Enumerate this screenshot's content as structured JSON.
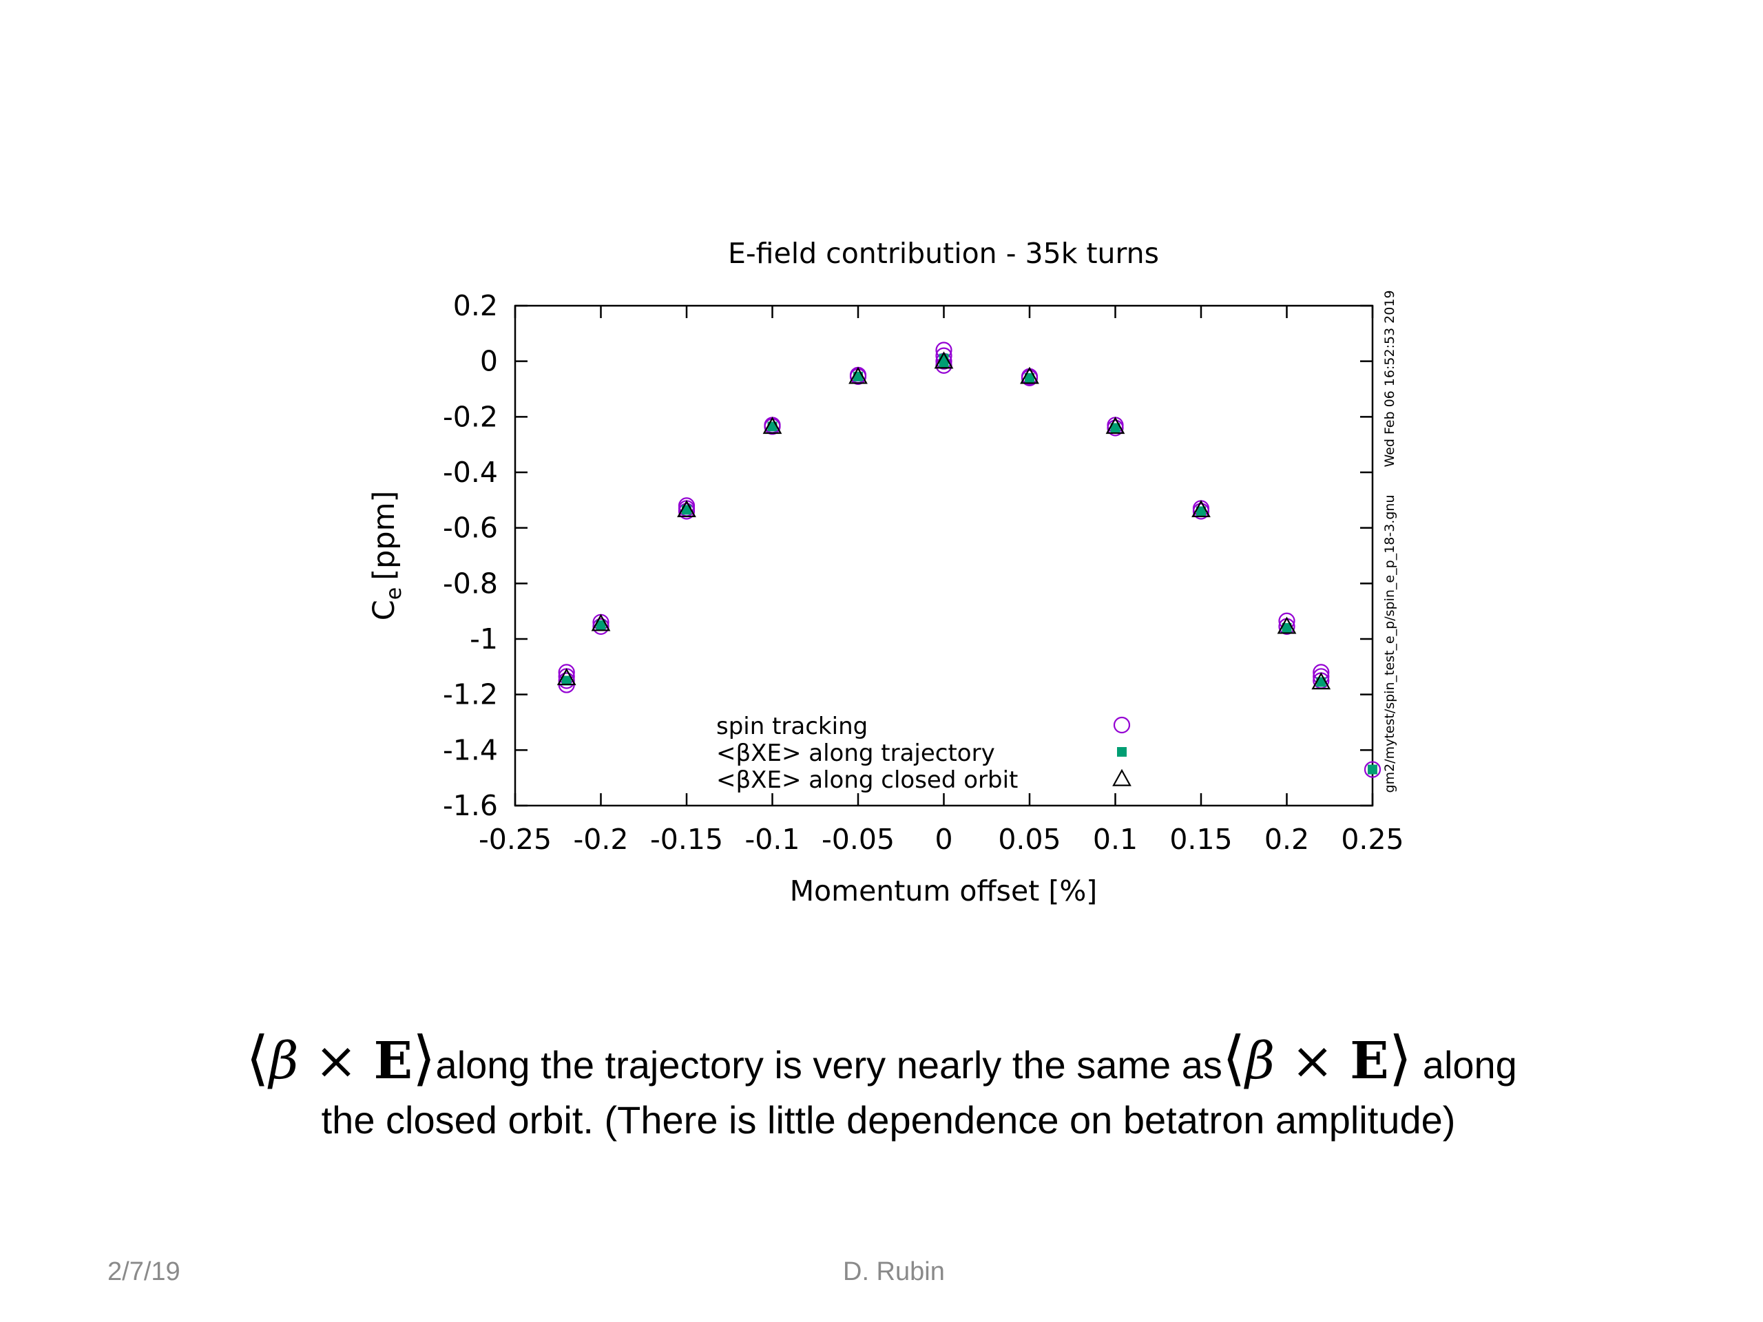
{
  "slide": {
    "caption_line1_a": "along the trajectory is very nearly the same as",
    "caption_line1_b": "along",
    "caption_line2": "the closed orbit. (There is little dependence on betatron amplitude)",
    "math_expression": "β × E",
    "date": "2/7/19",
    "author": "D. Rubin"
  },
  "plot_stamps": {
    "timestamp": "Wed Feb 06 16:52:53 2019",
    "script_path": "gm2/mytest/spin_test_e_p/spin_e_p_18-3.gnu"
  },
  "colors": {
    "spin_tracking": "#9400d3",
    "trajectory": "#009e73",
    "closed_orbit": "#000000",
    "axes": "#000000"
  },
  "chart_data": {
    "type": "scatter",
    "title": "E-field contribution - 35k turns",
    "xlabel": "Momentum offset [%]",
    "ylabel_main": "C",
    "ylabel_sub": "e",
    "ylabel_unit": "[ppm]",
    "xlim": [
      -0.25,
      0.25
    ],
    "ylim": [
      -1.6,
      0.2
    ],
    "xticks": [
      -0.25,
      -0.2,
      -0.15,
      -0.1,
      -0.05,
      0,
      0.05,
      0.1,
      0.15,
      0.2,
      0.25
    ],
    "xtick_labels": [
      "-0.25",
      "-0.2",
      "-0.15",
      "-0.1",
      "-0.05",
      "0",
      "0.05",
      "0.1",
      "0.15",
      "0.2",
      "0.25"
    ],
    "yticks": [
      0.2,
      0,
      -0.2,
      -0.4,
      -0.6,
      -0.8,
      -1,
      -1.2,
      -1.4,
      -1.6
    ],
    "ytick_labels": [
      "0.2",
      "0",
      "-0.2",
      "-0.4",
      "-0.6",
      "-0.8",
      "-1",
      "-1.2",
      "-1.4",
      "-1.6"
    ],
    "grid": false,
    "legend_position": "bottom-center",
    "series": [
      {
        "name": "spin tracking",
        "marker": "circle",
        "points": [
          [
            -0.22,
            -1.12
          ],
          [
            -0.22,
            -1.135
          ],
          [
            -0.22,
            -1.15
          ],
          [
            -0.22,
            -1.165
          ],
          [
            -0.2,
            -0.94
          ],
          [
            -0.2,
            -0.955
          ],
          [
            -0.15,
            -0.52
          ],
          [
            -0.15,
            -0.53
          ],
          [
            -0.15,
            -0.54
          ],
          [
            -0.1,
            -0.23
          ],
          [
            -0.1,
            -0.235
          ],
          [
            -0.05,
            -0.05
          ],
          [
            -0.05,
            -0.055
          ],
          [
            0,
            0.04
          ],
          [
            0,
            0.02
          ],
          [
            0,
            0.0
          ],
          [
            0,
            -0.015
          ],
          [
            0.05,
            -0.055
          ],
          [
            0.05,
            -0.06
          ],
          [
            0.1,
            -0.23
          ],
          [
            0.1,
            -0.24
          ],
          [
            0.15,
            -0.53
          ],
          [
            0.15,
            -0.54
          ],
          [
            0.2,
            -0.935
          ],
          [
            0.2,
            -0.955
          ],
          [
            0.22,
            -1.12
          ],
          [
            0.22,
            -1.135
          ],
          [
            0.22,
            -1.15
          ],
          [
            0.25,
            -1.47
          ]
        ]
      },
      {
        "name": "<βXE> along trajectory",
        "marker": "square",
        "points": [
          [
            -0.22,
            -1.15
          ],
          [
            -0.2,
            -0.95
          ],
          [
            -0.15,
            -0.535
          ],
          [
            -0.1,
            -0.235
          ],
          [
            -0.05,
            -0.055
          ],
          [
            0,
            0.01
          ],
          [
            0,
            -0.005
          ],
          [
            0.05,
            -0.06
          ],
          [
            0.1,
            -0.24
          ],
          [
            0.15,
            -0.54
          ],
          [
            0.2,
            -0.96
          ],
          [
            0.22,
            -1.155
          ],
          [
            0.25,
            -1.47
          ]
        ]
      },
      {
        "name": "<βXE> along closed orbit",
        "marker": "triangle",
        "points": [
          [
            -0.22,
            -1.14
          ],
          [
            -0.2,
            -0.945
          ],
          [
            -0.15,
            -0.535
          ],
          [
            -0.1,
            -0.235
          ],
          [
            -0.05,
            -0.055
          ],
          [
            0,
            0.0
          ],
          [
            0.05,
            -0.055
          ],
          [
            0.1,
            -0.235
          ],
          [
            0.15,
            -0.535
          ],
          [
            0.2,
            -0.955
          ],
          [
            0.22,
            -1.155
          ]
        ]
      }
    ]
  }
}
